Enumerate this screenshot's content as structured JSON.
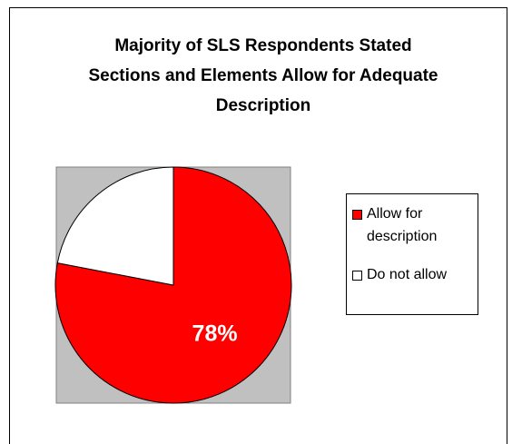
{
  "chart_data": {
    "type": "pie",
    "title": "Majority of SLS Respondents Stated Sections and Elements Allow for Adequate Description",
    "categories": [
      "Allow for description",
      "Do not allow"
    ],
    "values": [
      78,
      22
    ],
    "value_labels": [
      "78%",
      null
    ],
    "colors": [
      "#ff0000",
      "#ffffff"
    ],
    "legend": "right"
  }
}
